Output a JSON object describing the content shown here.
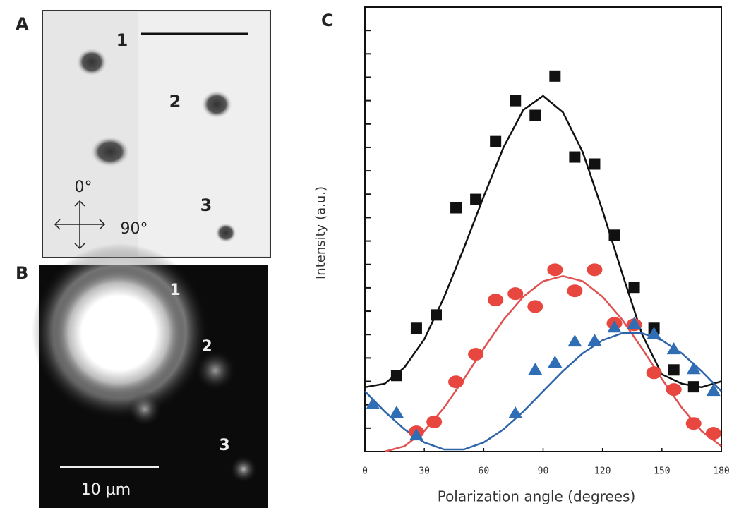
{
  "panels": {
    "A": {
      "label": "A",
      "spots": [
        "1",
        "2",
        "3"
      ],
      "directions": [
        "0°",
        "90°"
      ]
    },
    "B": {
      "label": "B",
      "spots": [
        "1",
        "2",
        "3"
      ],
      "scale": "10 µm"
    },
    "C": {
      "label": "C"
    }
  },
  "chart_data": {
    "type": "scatter",
    "x_label": "Polarization angle (degrees)",
    "y_label": "Intensity (a.u.)",
    "xlim": [
      0,
      180
    ],
    "xticks": [
      0,
      30,
      60,
      90,
      120,
      150,
      180
    ],
    "ylim": [
      0,
      19
    ],
    "yticks": [
      1,
      2,
      3,
      4,
      5,
      6,
      7,
      8,
      9,
      10,
      11,
      12,
      13,
      14,
      15,
      16,
      17,
      18
    ],
    "ytick_labels": false,
    "series": [
      {
        "mode": "markers",
        "marker": "square",
        "color": "#111111",
        "x": [
          16,
          26,
          36,
          46,
          56,
          66,
          76,
          86,
          96,
          106,
          116,
          126,
          136,
          146,
          156,
          166
        ],
        "values": [
          3.25,
          5.27,
          5.84,
          10.42,
          10.78,
          13.25,
          15.0,
          14.37,
          16.05,
          12.59,
          12.29,
          9.25,
          7.02,
          5.27,
          3.49,
          2.77
        ]
      },
      {
        "mode": "markers",
        "marker": "circle",
        "color": "#e8473f",
        "x": [
          26,
          35,
          46,
          56,
          66,
          76,
          86,
          96,
          106,
          116,
          126,
          136,
          146,
          156,
          166,
          176
        ],
        "values": [
          0.84,
          1.27,
          2.98,
          4.16,
          6.48,
          6.75,
          6.2,
          7.77,
          6.87,
          7.77,
          5.48,
          5.42,
          3.37,
          2.65,
          1.2,
          0.78
        ]
      },
      {
        "mode": "markers",
        "marker": "triangle",
        "color": "#2f6db5",
        "x": [
          4,
          16,
          26,
          76,
          86,
          96,
          106,
          116,
          126,
          136,
          146,
          156,
          166,
          176
        ],
        "values": [
          2.05,
          1.69,
          0.72,
          1.66,
          3.52,
          3.83,
          4.73,
          4.76,
          5.33,
          5.48,
          5.06,
          4.4,
          3.55,
          2.62
        ]
      },
      {
        "mode": "line",
        "color": "#111111",
        "x": [
          0,
          10,
          20,
          30,
          40,
          50,
          60,
          70,
          80,
          90,
          100,
          110,
          120,
          130,
          140,
          150,
          160,
          170,
          180
        ],
        "values": [
          2.75,
          2.9,
          3.6,
          4.8,
          6.6,
          8.7,
          10.9,
          13.0,
          14.6,
          15.2,
          14.5,
          12.8,
          10.3,
          7.6,
          5.0,
          3.3,
          2.9,
          2.75,
          3.0
        ]
      },
      {
        "mode": "line",
        "color": "#e05050",
        "x": [
          0,
          10,
          20,
          30,
          40,
          50,
          60,
          70,
          80,
          90,
          100,
          110,
          120,
          130,
          140,
          150,
          160,
          170,
          180
        ],
        "values": [
          null,
          0,
          0.23,
          0.88,
          1.88,
          3.1,
          4.4,
          5.63,
          6.62,
          7.28,
          7.5,
          7.28,
          6.62,
          5.63,
          4.4,
          3.1,
          1.88,
          0.88,
          0.23
        ]
      },
      {
        "mode": "line",
        "color": "#2e64a8",
        "x": [
          0,
          10,
          20,
          30,
          40,
          50,
          60,
          70,
          80,
          90,
          100,
          110,
          120,
          130,
          140,
          150,
          160,
          170,
          180
        ],
        "values": [
          2.58,
          1.71,
          0.95,
          0.39,
          0.09,
          0.09,
          0.39,
          0.95,
          1.71,
          2.58,
          3.44,
          4.2,
          4.76,
          5.06,
          5.06,
          4.76,
          4.2,
          3.44,
          2.58
        ]
      }
    ]
  }
}
